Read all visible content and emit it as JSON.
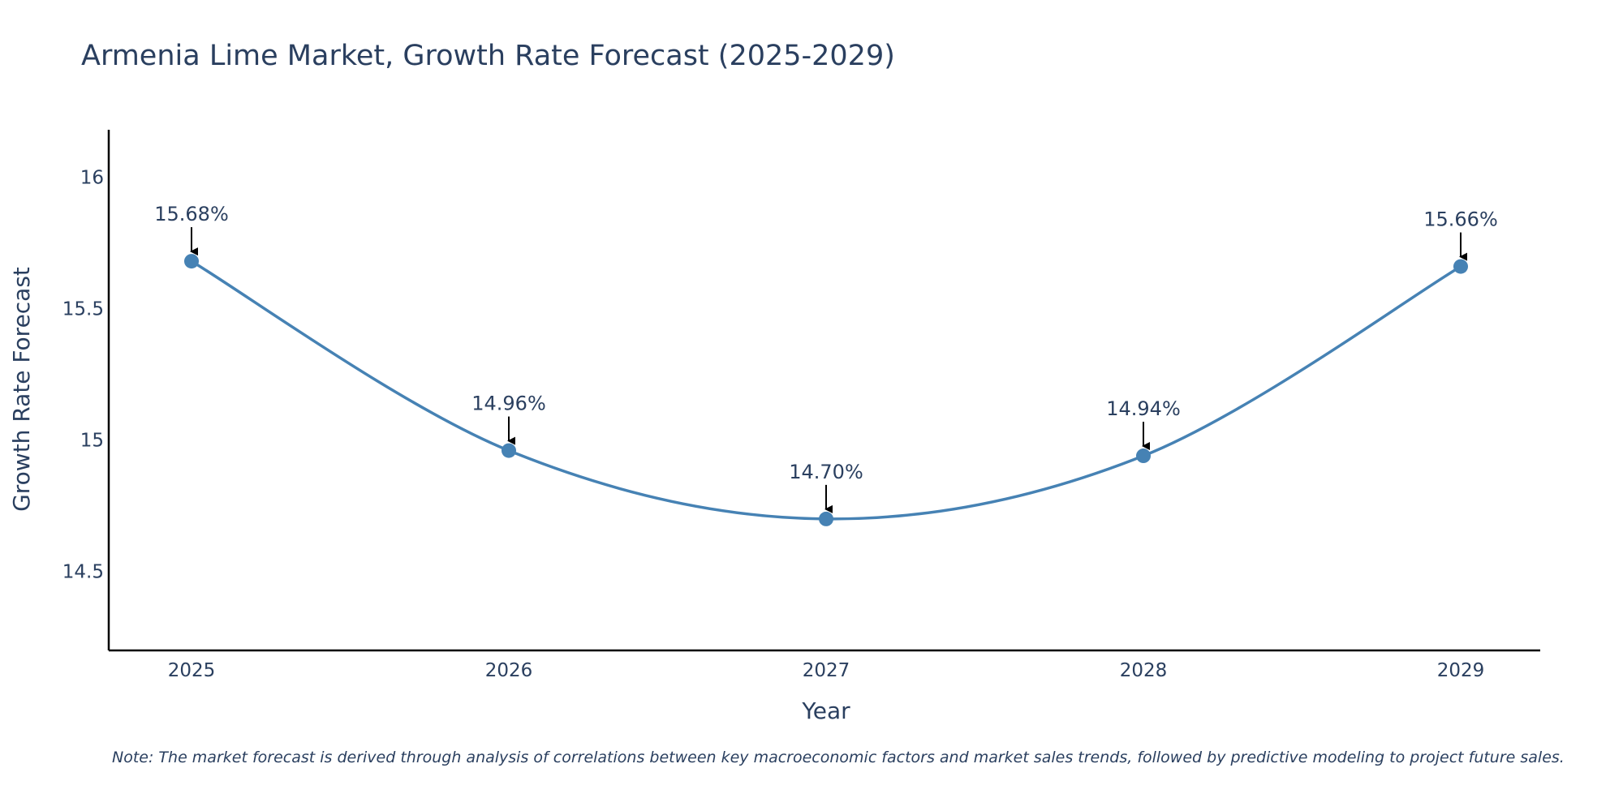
{
  "chart_data": {
    "type": "line",
    "title": "Armenia Lime Market, Growth Rate Forecast (2025-2029)",
    "xlabel": "Year",
    "ylabel": "Growth Rate Forecast",
    "x": [
      "2025",
      "2026",
      "2027",
      "2028",
      "2029"
    ],
    "series": [
      {
        "name": "Growth Rate Forecast",
        "values": [
          15.68,
          14.96,
          14.7,
          14.94,
          15.66
        ],
        "labels": [
          "15.68%",
          "14.96%",
          "14.70%",
          "14.94%",
          "15.66%"
        ]
      }
    ],
    "ylim": [
      14.2,
      16.18
    ],
    "yticks": [
      "14.5",
      "15",
      "15.5",
      "16"
    ],
    "grid": false,
    "line_color": "#4682B4",
    "note": "Note: The market forecast is derived through analysis of correlations between key macroeconomic factors and market sales trends, followed by predictive modeling to project future sales."
  }
}
